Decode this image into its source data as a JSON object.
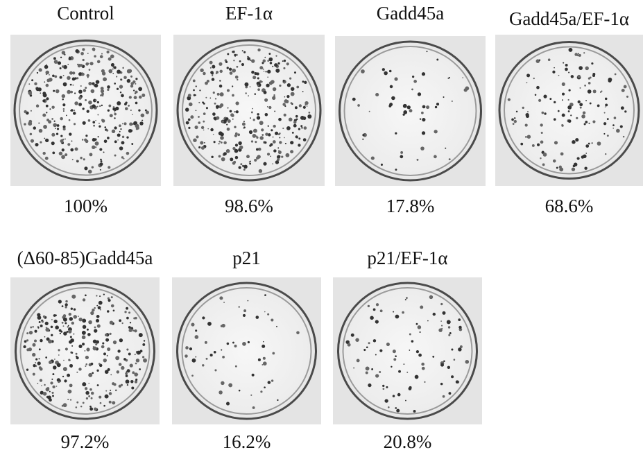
{
  "panels": [
    {
      "label": "Control",
      "result": "100%"
    },
    {
      "label": "EF-1α",
      "result": "98.6%"
    },
    {
      "label": "Gadd45a",
      "result": "17.8%"
    },
    {
      "label": "Gadd45a/EF-1α",
      "result": "68.6%"
    },
    {
      "label": "(Δ60-85)Gadd45a",
      "result": "97.2%"
    },
    {
      "label": "p21",
      "result": "16.2%"
    },
    {
      "label": "p21/EF-1α",
      "result": "20.8%"
    }
  ]
}
